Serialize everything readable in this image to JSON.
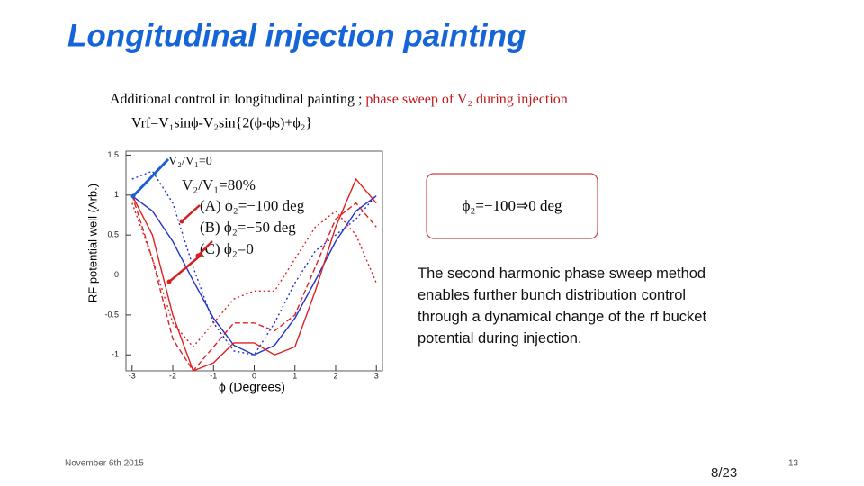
{
  "header": {
    "title": "Longitudinal injection painting"
  },
  "intro": {
    "lead": "Additional control in longitudinal painting ;",
    "highlight": "phase sweep of V₂ during injection",
    "equation": "Vrf=V₁sinϕ-V₂sin{2(ϕ-ϕs)+ϕ₂}"
  },
  "chart_data": {
    "type": "line",
    "y_label": "RF potential well (Arb.)",
    "x_label": "ϕ (Degrees)",
    "annotations": [
      "V₂/V₁=0",
      "V₂/V₁=80%",
      "(A) ϕ₂=−100 deg",
      "(B) ϕ₂=−50 deg",
      "(C) ϕ₂=0"
    ],
    "xlim": [
      -3.15,
      3.15
    ],
    "ylim": [
      -1.2,
      1.55
    ],
    "xticks": [
      -3,
      -2,
      -1,
      0,
      1,
      2,
      3
    ],
    "yticks": [
      -1,
      -0.5,
      0,
      0.5,
      1,
      1.5
    ],
    "x": [
      -3,
      -2.5,
      -2,
      -1.5,
      -1,
      -0.5,
      0,
      0.5,
      1,
      1.5,
      2,
      2.5,
      3
    ],
    "series": [
      {
        "color": "#2233cc",
        "dash": "solid",
        "values": [
          0.99,
          0.8,
          0.42,
          -0.07,
          -0.54,
          -0.88,
          -1.0,
          -0.88,
          -0.54,
          -0.07,
          0.42,
          0.8,
          0.99
        ]
      },
      {
        "color": "#2233cc",
        "dash": "dotted",
        "values": [
          1.2,
          1.3,
          0.9,
          0.1,
          -0.6,
          -0.95,
          -1.0,
          -0.6,
          -0.1,
          0.3,
          0.5,
          0.7,
          1.0
        ]
      },
      {
        "color": "#dd2222",
        "dash": "dotted",
        "values": [
          0.9,
          0.2,
          -0.6,
          -0.9,
          -0.6,
          -0.3,
          -0.2,
          -0.2,
          0.2,
          0.6,
          0.8,
          0.5,
          -0.1
        ]
      },
      {
        "color": "#dd2222",
        "dash": "dashed",
        "values": [
          1.0,
          0.2,
          -0.8,
          -1.2,
          -0.9,
          -0.6,
          -0.6,
          -0.7,
          -0.5,
          0.1,
          0.7,
          0.9,
          0.6
        ]
      },
      {
        "color": "#dd2222",
        "dash": "solid",
        "values": [
          1.0,
          0.5,
          -0.5,
          -1.2,
          -1.1,
          -0.85,
          -0.85,
          -1.0,
          -0.9,
          -0.2,
          0.6,
          1.2,
          0.9
        ]
      }
    ]
  },
  "callout": {
    "text": "ϕ₂=−100⇒0 deg"
  },
  "body": {
    "text": "The second harmonic phase sweep method enables further bunch distribution control through a dynamical change of the rf bucket potential during injection."
  },
  "footer": {
    "date": "November 6th 2015",
    "page_of": "8/23",
    "slide_number": "13"
  }
}
